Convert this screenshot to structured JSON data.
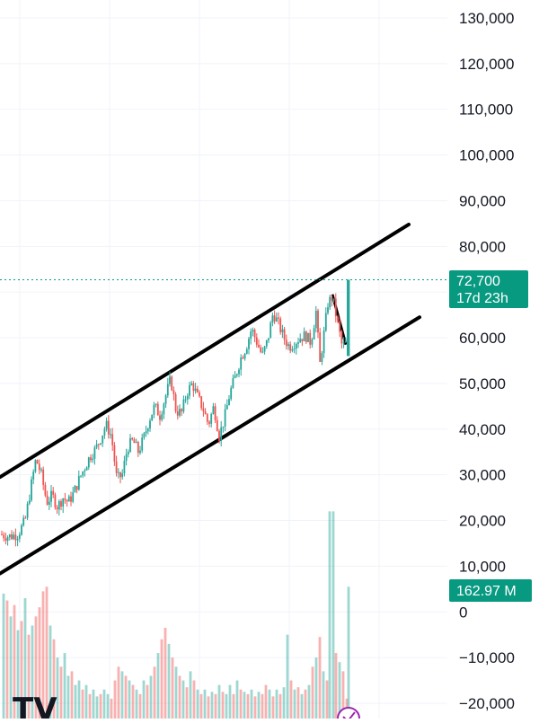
{
  "chart_data": {
    "type": "candlestick",
    "ylim": [
      -20000,
      130000
    ],
    "y_ticks": [
      "130,000",
      "120,000",
      "110,000",
      "100,000",
      "90,000",
      "80,000",
      "70,000",
      "60,000",
      "50,000",
      "40,000",
      "30,000",
      "20,000",
      "10,000",
      "0",
      "−10,000",
      "−20,000"
    ],
    "y_tick_values": [
      130000,
      120000,
      110000,
      100000,
      90000,
      80000,
      70000,
      60000,
      50000,
      40000,
      30000,
      20000,
      10000,
      0,
      -10000,
      -20000
    ],
    "grid": true,
    "price_badge": {
      "price": "72,700",
      "countdown": "17d 23h"
    },
    "volume_badge": {
      "label": "162.97 M"
    },
    "last_price": 72700,
    "channel": {
      "upper": [
        [
          0,
          29500
        ],
        [
          455,
          84800
        ]
      ],
      "lower": [
        [
          0,
          8400
        ],
        [
          467,
          64500
        ]
      ]
    },
    "price_series": [
      [
        0,
        17000
      ],
      [
        10,
        16500
      ],
      [
        20,
        17000
      ],
      [
        28,
        20000
      ],
      [
        35,
        28000
      ],
      [
        40,
        33500
      ],
      [
        46,
        30000
      ],
      [
        52,
        24000
      ],
      [
        58,
        25500
      ],
      [
        64,
        23000
      ],
      [
        70,
        25000
      ],
      [
        76,
        24000
      ],
      [
        82,
        26000
      ],
      [
        88,
        29000
      ],
      [
        94,
        31500
      ],
      [
        100,
        34000
      ],
      [
        106,
        35500
      ],
      [
        112,
        38000
      ],
      [
        118,
        41000
      ],
      [
        124,
        38500
      ],
      [
        130,
        29000
      ],
      [
        136,
        30000
      ],
      [
        142,
        36000
      ],
      [
        148,
        37500
      ],
      [
        154,
        35000
      ],
      [
        160,
        38000
      ],
      [
        166,
        42000
      ],
      [
        172,
        45000
      ],
      [
        178,
        43000
      ],
      [
        184,
        47000
      ],
      [
        190,
        51000
      ],
      [
        196,
        44000
      ],
      [
        202,
        43500
      ],
      [
        208,
        48000
      ],
      [
        214,
        50000
      ],
      [
        220,
        47000
      ],
      [
        226,
        44500
      ],
      [
        232,
        41000
      ],
      [
        238,
        45000
      ],
      [
        244,
        38500
      ],
      [
        250,
        42500
      ],
      [
        256,
        48000
      ],
      [
        262,
        51500
      ],
      [
        268,
        55500
      ],
      [
        274,
        58000
      ],
      [
        280,
        62000
      ],
      [
        286,
        59000
      ],
      [
        292,
        56000
      ],
      [
        298,
        59500
      ],
      [
        304,
        65500
      ],
      [
        310,
        63000
      ],
      [
        316,
        60000
      ],
      [
        322,
        58000
      ],
      [
        328,
        59000
      ],
      [
        334,
        60000
      ],
      [
        340,
        60500
      ],
      [
        346,
        59000
      ],
      [
        352,
        66000
      ],
      [
        356,
        54000
      ],
      [
        360,
        60000
      ],
      [
        365,
        67500
      ],
      [
        370,
        69000
      ],
      [
        376,
        63000
      ],
      [
        381,
        58000
      ],
      [
        386,
        59000
      ],
      [
        388,
        72700
      ]
    ],
    "volume_bars": [
      [
        4,
        4000,
        "g"
      ],
      [
        8,
        2500,
        "r"
      ],
      [
        12,
        -1000,
        "g"
      ],
      [
        16,
        1500,
        "r"
      ],
      [
        20,
        -4000,
        "g"
      ],
      [
        24,
        -2000,
        "r"
      ],
      [
        28,
        3000,
        "g"
      ],
      [
        32,
        -5000,
        "r"
      ],
      [
        36,
        -3000,
        "g"
      ],
      [
        40,
        -1000,
        "r"
      ],
      [
        44,
        1000,
        "r"
      ],
      [
        48,
        4500,
        "r"
      ],
      [
        52,
        5500,
        "r"
      ],
      [
        56,
        -3000,
        "g"
      ],
      [
        60,
        -6000,
        "r"
      ],
      [
        64,
        -10000,
        "g"
      ],
      [
        68,
        -12000,
        "r"
      ],
      [
        72,
        -9000,
        "g"
      ],
      [
        76,
        -14000,
        "g"
      ],
      [
        80,
        -13000,
        "r"
      ],
      [
        84,
        -16000,
        "g"
      ],
      [
        88,
        -15000,
        "g"
      ],
      [
        92,
        -17000,
        "r"
      ],
      [
        96,
        -16000,
        "g"
      ],
      [
        100,
        -18000,
        "r"
      ],
      [
        104,
        -17000,
        "g"
      ],
      [
        108,
        -18500,
        "g"
      ],
      [
        112,
        -18000,
        "r"
      ],
      [
        116,
        -17000,
        "g"
      ],
      [
        120,
        -18000,
        "g"
      ],
      [
        124,
        -19000,
        "r"
      ],
      [
        128,
        -15000,
        "r"
      ],
      [
        132,
        -12000,
        "r"
      ],
      [
        136,
        -13000,
        "g"
      ],
      [
        140,
        -14000,
        "r"
      ],
      [
        144,
        -15000,
        "g"
      ],
      [
        148,
        -16000,
        "r"
      ],
      [
        152,
        -17000,
        "g"
      ],
      [
        156,
        -18000,
        "r"
      ],
      [
        160,
        -15000,
        "g"
      ],
      [
        164,
        -16000,
        "r"
      ],
      [
        168,
        -14000,
        "g"
      ],
      [
        172,
        -12000,
        "r"
      ],
      [
        176,
        -9000,
        "g"
      ],
      [
        180,
        -6000,
        "r"
      ],
      [
        184,
        -3500,
        "r"
      ],
      [
        188,
        -7000,
        "g"
      ],
      [
        192,
        -10000,
        "r"
      ],
      [
        196,
        -12000,
        "g"
      ],
      [
        200,
        -14000,
        "r"
      ],
      [
        204,
        -15000,
        "g"
      ],
      [
        208,
        -16500,
        "r"
      ],
      [
        212,
        -13000,
        "g"
      ],
      [
        216,
        -15000,
        "r"
      ],
      [
        220,
        -17000,
        "g"
      ],
      [
        224,
        -18000,
        "r"
      ],
      [
        228,
        -17000,
        "g"
      ],
      [
        232,
        -18500,
        "r"
      ],
      [
        236,
        -17500,
        "g"
      ],
      [
        240,
        -18000,
        "r"
      ],
      [
        244,
        -16000,
        "g"
      ],
      [
        248,
        -17500,
        "r"
      ],
      [
        252,
        -18000,
        "g"
      ],
      [
        256,
        -16000,
        "g"
      ],
      [
        260,
        -18000,
        "r"
      ],
      [
        264,
        -15000,
        "g"
      ],
      [
        268,
        -17000,
        "r"
      ],
      [
        272,
        -17500,
        "g"
      ],
      [
        276,
        -18000,
        "r"
      ],
      [
        280,
        -17000,
        "g"
      ],
      [
        284,
        -18500,
        "r"
      ],
      [
        288,
        -17500,
        "g"
      ],
      [
        292,
        -18000,
        "r"
      ],
      [
        296,
        -16000,
        "r"
      ],
      [
        300,
        -17000,
        "g"
      ],
      [
        304,
        -18500,
        "r"
      ],
      [
        308,
        -17000,
        "g"
      ],
      [
        312,
        -18000,
        "r"
      ],
      [
        316,
        -16500,
        "g"
      ],
      [
        320,
        -5000,
        "g"
      ],
      [
        324,
        -15000,
        "r"
      ],
      [
        328,
        -17000,
        "g"
      ],
      [
        332,
        -16500,
        "r"
      ],
      [
        336,
        -18000,
        "g"
      ],
      [
        340,
        -17000,
        "r"
      ],
      [
        344,
        -16000,
        "g"
      ],
      [
        348,
        -12000,
        "r"
      ],
      [
        352,
        -10000,
        "g"
      ],
      [
        356,
        -5500,
        "r"
      ],
      [
        360,
        -13000,
        "g"
      ],
      [
        364,
        -15000,
        "r"
      ],
      [
        367,
        22000,
        "g"
      ],
      [
        371,
        22000,
        "g"
      ],
      [
        374,
        -9000,
        "r"
      ],
      [
        378,
        -11000,
        "g"
      ],
      [
        382,
        -13000,
        "r"
      ],
      [
        386,
        -19000,
        "r"
      ],
      [
        388,
        5500,
        "g"
      ]
    ]
  },
  "colors": {
    "up": "#26a69a",
    "down": "#ef5350",
    "badge": "#089981",
    "grid": "#f0f3fa",
    "channel": "#000000"
  },
  "watermark": {
    "logo": "tradingview-logo"
  }
}
